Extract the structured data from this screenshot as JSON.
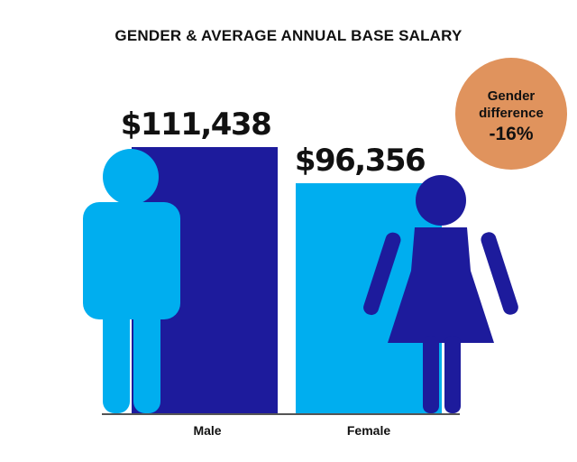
{
  "chart_data": {
    "type": "bar",
    "title": "GENDER & AVERAGE ANNUAL BASE SALARY",
    "categories": [
      "Male",
      "Female"
    ],
    "values": [
      111438,
      96356
    ],
    "value_labels": [
      "$111,438",
      "$96,356"
    ],
    "colors": {
      "male_bar": "#1d1b9c",
      "female_bar": "#00aeef",
      "male_figure": "#00aeef",
      "female_figure": "#1d1b9c",
      "baseline": "#555555"
    },
    "ylim": [
      0,
      111438
    ],
    "grid": false
  },
  "annotation": {
    "line1": "Gender",
    "line2": "difference",
    "value": "-16%",
    "color": "#e0935d"
  }
}
